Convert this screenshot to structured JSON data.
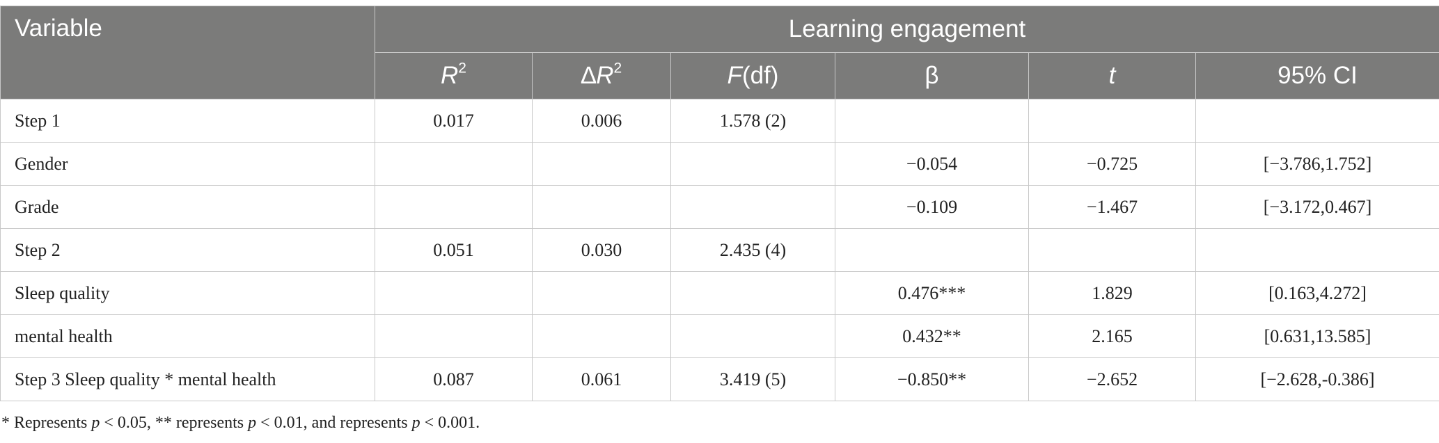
{
  "table": {
    "header": {
      "variable": "Variable",
      "group": "Learning engagement",
      "columns": {
        "r2_base": "R",
        "r2_sup": "2",
        "dr2_prefix": "∆",
        "dr2_base": "R",
        "dr2_sup": "2",
        "f_italic": "F",
        "f_rest": "(df)",
        "beta": "β",
        "t": "t",
        "ci": "95% CI"
      }
    },
    "rows": [
      {
        "label": "Step 1",
        "r2": "0.017",
        "dr2": "0.006",
        "f": "1.578 (2)",
        "beta": "",
        "t": "",
        "ci": ""
      },
      {
        "label": "Gender",
        "r2": "",
        "dr2": "",
        "f": "",
        "beta": "−0.054",
        "t": "−0.725",
        "ci": "[−3.786,1.752]"
      },
      {
        "label": "Grade",
        "r2": "",
        "dr2": "",
        "f": "",
        "beta": "−0.109",
        "t": "−1.467",
        "ci": "[−3.172,0.467]"
      },
      {
        "label": "Step 2",
        "r2": "0.051",
        "dr2": "0.030",
        "f": "2.435 (4)",
        "beta": "",
        "t": "",
        "ci": ""
      },
      {
        "label": "Sleep quality",
        "r2": "",
        "dr2": "",
        "f": "",
        "beta": "0.476***",
        "t": "1.829",
        "ci": "[0.163,4.272]"
      },
      {
        "label": "mental health",
        "r2": "",
        "dr2": "",
        "f": "",
        "beta": "0.432**",
        "t": "2.165",
        "ci": "[0.631,13.585]"
      },
      {
        "label": "Step 3 Sleep quality * mental health",
        "r2": "0.087",
        "dr2": "0.061",
        "f": "3.419 (5)",
        "beta": "−0.850**",
        "t": "−2.652",
        "ci": "[−2.628,-0.386]"
      }
    ]
  },
  "footnote": {
    "part1": "* Represents ",
    "p1": "p",
    "part2": " < 0.05, ** represents ",
    "p2": "p",
    "part3": " < 0.01, and represents ",
    "p3": "p",
    "part4": " < 0.001."
  }
}
